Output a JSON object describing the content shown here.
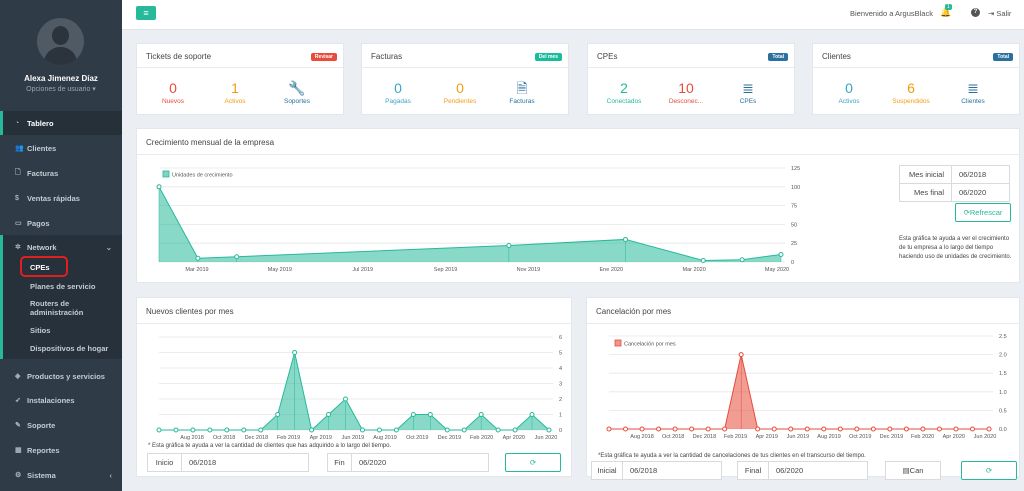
{
  "sidebar": {
    "user_name": "Alexa Jimenez Díaz",
    "user_options": "Opciones de usuario ▾",
    "items": [
      {
        "label": "Tablero",
        "icon": "dashboard-icon"
      },
      {
        "label": "Clientes",
        "icon": "users-icon"
      },
      {
        "label": "Facturas",
        "icon": "document-icon"
      },
      {
        "label": "Ventas rápidas",
        "icon": "dollar-icon"
      },
      {
        "label": "Pagos",
        "icon": "money-icon"
      },
      {
        "label": "Network",
        "icon": "network-icon"
      },
      {
        "label": "Productos y servicios",
        "icon": "tag-icon"
      },
      {
        "label": "Instalaciones",
        "icon": "rocket-icon"
      },
      {
        "label": "Soporte",
        "icon": "wrench-icon"
      },
      {
        "label": "Reportes",
        "icon": "chart-icon"
      },
      {
        "label": "Sistema",
        "icon": "gears-icon"
      }
    ],
    "network_sub": [
      "CPEs",
      "Planes de servicio",
      "Routers de administración",
      "Sitios",
      "Dispositivos de hogar"
    ]
  },
  "topbar": {
    "welcome": "Bienvenido a ArgusBlack",
    "notif_count": "1",
    "logout": "Salir"
  },
  "cards": [
    {
      "title": "Tickets de soporte",
      "badge": "Revisar",
      "badge_color": "#e74c3c",
      "stats": [
        {
          "n": "0",
          "l": "Nuevos",
          "c": "#e74c3c"
        },
        {
          "n": "1",
          "l": "Activos",
          "c": "#f39c12"
        },
        {
          "n": "🔧",
          "l": "Soportes",
          "c": "#2a6f9e"
        }
      ]
    },
    {
      "title": "Facturas",
      "badge": "Del mes",
      "badge_color": "#1abc9c",
      "stats": [
        {
          "n": "0",
          "l": "Pagadas",
          "c": "#3aa5c7"
        },
        {
          "n": "0",
          "l": "Pendientes",
          "c": "#f39c12"
        },
        {
          "n": "🗎",
          "l": "Facturas",
          "c": "#2a6f9e"
        }
      ]
    },
    {
      "title": "CPEs",
      "badge": "Total",
      "badge_color": "#2a6f9e",
      "stats": [
        {
          "n": "2",
          "l": "Conectados",
          "c": "#26b99a"
        },
        {
          "n": "10",
          "l": "Desconec...",
          "c": "#e74c3c"
        },
        {
          "n": "≣",
          "l": "CPEs",
          "c": "#2a6f9e"
        }
      ]
    },
    {
      "title": "Clientes",
      "badge": "Total",
      "badge_color": "#2a6f9e",
      "stats": [
        {
          "n": "0",
          "l": "Activos",
          "c": "#3aa5c7"
        },
        {
          "n": "6",
          "l": "Suspendidos",
          "c": "#f39c12"
        },
        {
          "n": "≣",
          "l": "Clientes",
          "c": "#2a6f9e"
        }
      ]
    }
  ],
  "growth": {
    "title": "Crecimiento mensual de la empresa",
    "mes_inicial_label": "Mes inicial",
    "mes_inicial": "06/2018",
    "mes_final_label": "Mes final",
    "mes_final": "06/2020",
    "refresh": "Refrescar",
    "note": "Esta gráfica te ayuda a ver el crecimiento de tu empresa a lo largo del tiempo haciendo uso de unidades de crecimiento."
  },
  "new_clients": {
    "title": "Nuevos clientes por mes",
    "note": "* Esta gráfica te ayuda a ver la cantidad de clientes que has adquirido a lo largo del tiempo.",
    "inicio_label": "Inicio",
    "inicio": "06/2018",
    "fin_label": "Fin",
    "fin": "06/2020"
  },
  "cancel": {
    "title": "Cancelación por mes",
    "note": "*Esta gráfica te ayuda a ver la cantidad de cancelaciones de tus clientes en el transcurso del tiempo.",
    "inicial_label": "Inicial",
    "inicial": "06/2018",
    "final_label": "Final",
    "final": "06/2020",
    "can": "Can"
  },
  "chart_data": [
    {
      "type": "area",
      "title": "Crecimiento mensual de la empresa",
      "legend": "Unidades de crecimiento",
      "color": "#26b99a",
      "x_ticks": [
        "Mar 2019",
        "May 2019",
        "Jul 2019",
        "Sep 2019",
        "Nov 2019",
        "Ene 2020",
        "Mar 2020",
        "May 2020"
      ],
      "x": [
        0,
        1,
        2,
        9,
        12,
        14,
        15,
        16
      ],
      "y": [
        100,
        5,
        7,
        22,
        30,
        2,
        3,
        10
      ],
      "xlim": [
        0,
        16
      ],
      "ylim": [
        0,
        125
      ],
      "y_ticks": [
        0,
        25,
        50,
        75,
        100,
        125
      ]
    },
    {
      "type": "area",
      "title": "Nuevos clientes por mes",
      "color": "#26b99a",
      "x_ticks": [
        "Aug 2018",
        "Oct 2018",
        "Dec 2018",
        "Feb 2019",
        "Apr 2019",
        "Jun 2019",
        "Aug 2019",
        "Oct 2019",
        "Dec 2019",
        "Feb 2020",
        "Apr 2020",
        "Jun 2020"
      ],
      "values": [
        0,
        0,
        0,
        0,
        0,
        0,
        0,
        1,
        5,
        0,
        1,
        2,
        0,
        0,
        0,
        1,
        1,
        0,
        0,
        1,
        0,
        0,
        1,
        0
      ],
      "ylim": [
        0,
        6
      ],
      "y_ticks": [
        0,
        1,
        2,
        3,
        4,
        5,
        6
      ]
    },
    {
      "type": "area",
      "title": "Cancelación por mes",
      "legend": "Cancelación por mes",
      "color": "#e74c3c",
      "x_ticks": [
        "Aug 2018",
        "Oct 2018",
        "Dec 2018",
        "Feb 2019",
        "Apr 2019",
        "Jun 2019",
        "Aug 2019",
        "Oct 2019",
        "Dec 2019",
        "Feb 2020",
        "Apr 2020",
        "Jun 2020"
      ],
      "values": [
        0,
        0,
        0,
        0,
        0,
        0,
        0,
        0,
        2,
        0,
        0,
        0,
        0,
        0,
        0,
        0,
        0,
        0,
        0,
        0,
        0,
        0,
        0,
        0
      ],
      "ylim": [
        0,
        2.5
      ],
      "y_ticks": [
        "0.0",
        "0.5",
        "1.0",
        "1.5",
        "2.0",
        "2.5"
      ]
    }
  ]
}
